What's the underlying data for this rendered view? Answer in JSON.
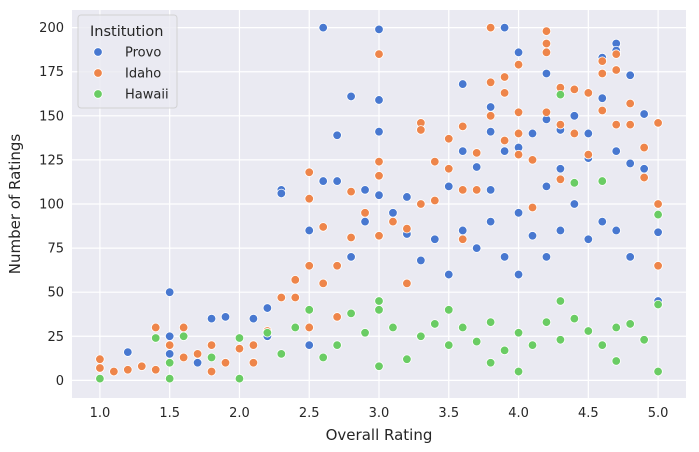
{
  "chart_data": {
    "type": "scatter",
    "title": "",
    "xlabel": "Overall Rating",
    "ylabel": "Number of Ratings",
    "xlim": [
      0.8,
      5.2
    ],
    "ylim": [
      -10,
      210
    ],
    "x_ticks": [
      1.0,
      1.5,
      2.0,
      2.5,
      3.0,
      3.5,
      4.0,
      4.5,
      5.0
    ],
    "y_ticks": [
      0,
      25,
      50,
      75,
      100,
      125,
      150,
      175,
      200
    ],
    "x_tick_labels": [
      "1.0",
      "1.5",
      "2.0",
      "2.5",
      "3.0",
      "3.5",
      "4.0",
      "4.5",
      "5.0"
    ],
    "y_tick_labels": [
      "0",
      "25",
      "50",
      "75",
      "100",
      "125",
      "150",
      "175",
      "200"
    ],
    "grid": true,
    "legend": {
      "title": "Institution",
      "placement": "upper-left"
    },
    "series": [
      {
        "name": "Provo",
        "color": "#4878d0",
        "points": [
          [
            1.2,
            16
          ],
          [
            1.5,
            50
          ],
          [
            1.5,
            25
          ],
          [
            1.5,
            15
          ],
          [
            1.7,
            10
          ],
          [
            1.8,
            35
          ],
          [
            1.9,
            36
          ],
          [
            2.1,
            35
          ],
          [
            2.2,
            41
          ],
          [
            2.2,
            25
          ],
          [
            2.3,
            108
          ],
          [
            2.3,
            106
          ],
          [
            2.5,
            85
          ],
          [
            2.5,
            20
          ],
          [
            2.6,
            200
          ],
          [
            2.6,
            113
          ],
          [
            2.7,
            139
          ],
          [
            2.7,
            113
          ],
          [
            2.8,
            161
          ],
          [
            2.8,
            70
          ],
          [
            2.9,
            108
          ],
          [
            2.9,
            90
          ],
          [
            3.0,
            199
          ],
          [
            3.0,
            159
          ],
          [
            3.0,
            141
          ],
          [
            3.0,
            105
          ],
          [
            3.1,
            95
          ],
          [
            3.2,
            104
          ],
          [
            3.2,
            83
          ],
          [
            3.3,
            68
          ],
          [
            3.4,
            80
          ],
          [
            3.5,
            110
          ],
          [
            3.5,
            60
          ],
          [
            3.6,
            168
          ],
          [
            3.6,
            130
          ],
          [
            3.6,
            85
          ],
          [
            3.7,
            121
          ],
          [
            3.7,
            75
          ],
          [
            3.8,
            155
          ],
          [
            3.8,
            141
          ],
          [
            3.8,
            108
          ],
          [
            3.8,
            90
          ],
          [
            3.9,
            200
          ],
          [
            3.9,
            130
          ],
          [
            3.9,
            70
          ],
          [
            4.0,
            186
          ],
          [
            4.0,
            132
          ],
          [
            4.0,
            95
          ],
          [
            4.0,
            60
          ],
          [
            4.1,
            140
          ],
          [
            4.1,
            82
          ],
          [
            4.2,
            174
          ],
          [
            4.2,
            148
          ],
          [
            4.2,
            110
          ],
          [
            4.2,
            70
          ],
          [
            4.3,
            142
          ],
          [
            4.3,
            120
          ],
          [
            4.3,
            85
          ],
          [
            4.4,
            150
          ],
          [
            4.4,
            100
          ],
          [
            4.5,
            140
          ],
          [
            4.5,
            126
          ],
          [
            4.5,
            80
          ],
          [
            4.6,
            183
          ],
          [
            4.6,
            160
          ],
          [
            4.6,
            90
          ],
          [
            4.7,
            191
          ],
          [
            4.7,
            187
          ],
          [
            4.7,
            130
          ],
          [
            4.7,
            85
          ],
          [
            4.8,
            173
          ],
          [
            4.8,
            123
          ],
          [
            4.8,
            70
          ],
          [
            4.9,
            151
          ],
          [
            4.9,
            120
          ],
          [
            5.0,
            84
          ],
          [
            5.0,
            45
          ]
        ]
      },
      {
        "name": "Idaho",
        "color": "#ee854a",
        "points": [
          [
            1.0,
            12
          ],
          [
            1.0,
            7
          ],
          [
            1.1,
            5
          ],
          [
            1.2,
            6
          ],
          [
            1.3,
            8
          ],
          [
            1.4,
            30
          ],
          [
            1.4,
            6
          ],
          [
            1.5,
            20
          ],
          [
            1.6,
            30
          ],
          [
            1.6,
            13
          ],
          [
            1.7,
            15
          ],
          [
            1.8,
            20
          ],
          [
            1.8,
            5
          ],
          [
            1.9,
            10
          ],
          [
            2.0,
            18
          ],
          [
            2.1,
            20
          ],
          [
            2.1,
            10
          ],
          [
            2.2,
            28
          ],
          [
            2.3,
            47
          ],
          [
            2.4,
            57
          ],
          [
            2.4,
            47
          ],
          [
            2.5,
            118
          ],
          [
            2.5,
            103
          ],
          [
            2.5,
            65
          ],
          [
            2.5,
            30
          ],
          [
            2.6,
            87
          ],
          [
            2.6,
            55
          ],
          [
            2.7,
            65
          ],
          [
            2.7,
            36
          ],
          [
            2.8,
            107
          ],
          [
            2.8,
            81
          ],
          [
            2.9,
            95
          ],
          [
            3.0,
            185
          ],
          [
            3.0,
            124
          ],
          [
            3.0,
            116
          ],
          [
            3.0,
            82
          ],
          [
            3.1,
            90
          ],
          [
            3.2,
            86
          ],
          [
            3.2,
            55
          ],
          [
            3.3,
            146
          ],
          [
            3.3,
            142
          ],
          [
            3.3,
            100
          ],
          [
            3.4,
            124
          ],
          [
            3.4,
            102
          ],
          [
            3.5,
            137
          ],
          [
            3.5,
            120
          ],
          [
            3.6,
            144
          ],
          [
            3.6,
            108
          ],
          [
            3.6,
            80
          ],
          [
            3.7,
            129
          ],
          [
            3.7,
            108
          ],
          [
            3.8,
            200
          ],
          [
            3.8,
            169
          ],
          [
            3.8,
            150
          ],
          [
            3.9,
            172
          ],
          [
            3.9,
            163
          ],
          [
            3.9,
            136
          ],
          [
            4.0,
            179
          ],
          [
            4.0,
            152
          ],
          [
            4.0,
            140
          ],
          [
            4.0,
            128
          ],
          [
            4.1,
            125
          ],
          [
            4.1,
            98
          ],
          [
            4.2,
            198
          ],
          [
            4.2,
            191
          ],
          [
            4.2,
            186
          ],
          [
            4.2,
            152
          ],
          [
            4.3,
            166
          ],
          [
            4.3,
            145
          ],
          [
            4.3,
            114
          ],
          [
            4.4,
            165
          ],
          [
            4.4,
            140
          ],
          [
            4.5,
            163
          ],
          [
            4.5,
            128
          ],
          [
            4.6,
            181
          ],
          [
            4.6,
            174
          ],
          [
            4.6,
            153
          ],
          [
            4.7,
            185
          ],
          [
            4.7,
            176
          ],
          [
            4.7,
            145
          ],
          [
            4.8,
            157
          ],
          [
            4.8,
            145
          ],
          [
            4.9,
            132
          ],
          [
            4.9,
            115
          ],
          [
            5.0,
            146
          ],
          [
            5.0,
            100
          ],
          [
            5.0,
            65
          ]
        ]
      },
      {
        "name": "Hawaii",
        "color": "#6acc64",
        "points": [
          [
            1.0,
            1
          ],
          [
            1.4,
            24
          ],
          [
            1.5,
            10
          ],
          [
            1.5,
            1
          ],
          [
            1.6,
            25
          ],
          [
            1.8,
            13
          ],
          [
            2.0,
            24
          ],
          [
            2.0,
            1
          ],
          [
            2.2,
            27
          ],
          [
            2.3,
            15
          ],
          [
            2.4,
            30
          ],
          [
            2.5,
            40
          ],
          [
            2.6,
            13
          ],
          [
            2.7,
            20
          ],
          [
            2.8,
            38
          ],
          [
            2.9,
            27
          ],
          [
            3.0,
            45
          ],
          [
            3.0,
            40
          ],
          [
            3.0,
            8
          ],
          [
            3.1,
            30
          ],
          [
            3.2,
            12
          ],
          [
            3.3,
            25
          ],
          [
            3.4,
            32
          ],
          [
            3.5,
            40
          ],
          [
            3.5,
            20
          ],
          [
            3.6,
            30
          ],
          [
            3.7,
            22
          ],
          [
            3.8,
            33
          ],
          [
            3.8,
            10
          ],
          [
            3.9,
            17
          ],
          [
            4.0,
            27
          ],
          [
            4.0,
            5
          ],
          [
            4.1,
            20
          ],
          [
            4.2,
            33
          ],
          [
            4.3,
            162
          ],
          [
            4.3,
            45
          ],
          [
            4.3,
            23
          ],
          [
            4.4,
            112
          ],
          [
            4.4,
            35
          ],
          [
            4.5,
            28
          ],
          [
            4.6,
            113
          ],
          [
            4.6,
            20
          ],
          [
            4.7,
            30
          ],
          [
            4.7,
            11
          ],
          [
            4.8,
            32
          ],
          [
            4.9,
            23
          ],
          [
            5.0,
            94
          ],
          [
            5.0,
            43
          ],
          [
            5.0,
            5
          ]
        ]
      }
    ]
  }
}
